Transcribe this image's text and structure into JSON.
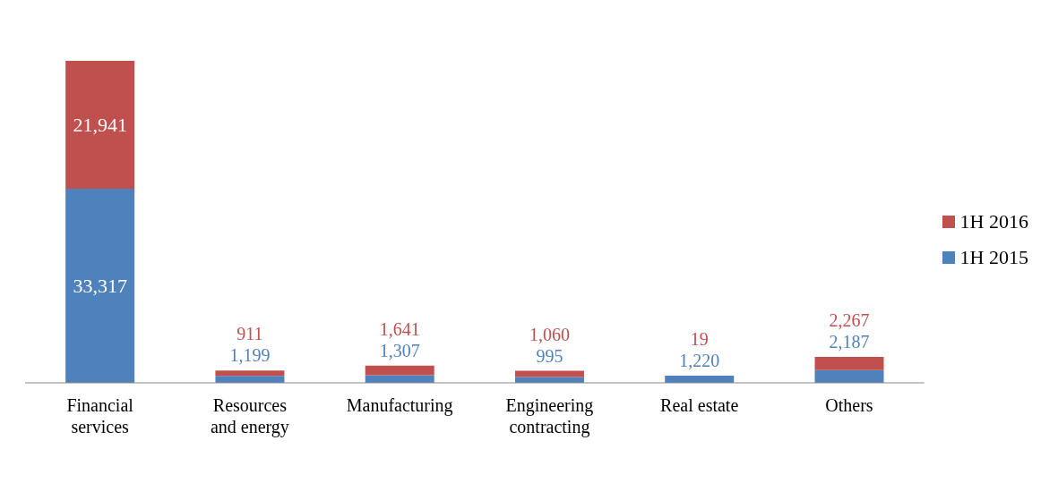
{
  "chart_data": {
    "type": "bar",
    "stacked": true,
    "categories": [
      "Financial services",
      "Resources and energy",
      "Manufacturing",
      "Engineering contracting",
      "Real estate",
      "Others"
    ],
    "series": [
      {
        "name": "1H 2015",
        "color": "#4f81bd",
        "values": [
          33317,
          1199,
          1307,
          995,
          1220,
          2187
        ],
        "value_labels": [
          "33,317",
          "1,199",
          "1,307",
          "995",
          "1,220",
          "2,187"
        ]
      },
      {
        "name": "1H 2016",
        "color": "#c0504d",
        "values": [
          21941,
          911,
          1641,
          1060,
          19,
          2267
        ],
        "value_labels": [
          "21,941",
          "911",
          "1,641",
          "1,060",
          "19",
          "2,267"
        ]
      }
    ],
    "legend": "right",
    "grid": false
  }
}
